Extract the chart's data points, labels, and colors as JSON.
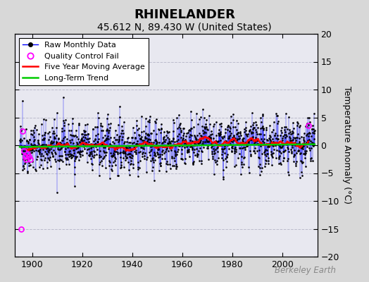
{
  "title": "RHINELANDER",
  "subtitle": "45.612 N, 89.430 W (United States)",
  "ylabel": "Temperature Anomaly (°C)",
  "watermark": "Berkeley Earth",
  "xlim": [
    1893,
    2014
  ],
  "ylim": [
    -20,
    20
  ],
  "yticks": [
    -20,
    -15,
    -10,
    -5,
    0,
    5,
    10,
    15,
    20
  ],
  "xticks": [
    1900,
    1920,
    1940,
    1960,
    1980,
    2000
  ],
  "start_year": 1895,
  "end_year": 2012,
  "seed": 42,
  "noise_std": 2.5,
  "raw_color": "#0000ff",
  "moving_avg_color": "#ff0000",
  "trend_color": "#00cc00",
  "qc_color": "#ff00ff",
  "background_color": "#d8d8d8",
  "plot_bg_color": "#e8e8f0",
  "grid_color": "#bbbbcc",
  "title_fontsize": 13,
  "subtitle_fontsize": 10,
  "axis_fontsize": 9,
  "ylabel_fontsize": 9,
  "qc_points_x": [
    1895.5,
    1896.2,
    1896.7,
    1897.1,
    1897.6,
    1898.1,
    1898.6,
    1899.1,
    2010.5
  ],
  "qc_points_y": [
    -15.0,
    2.5,
    -1.0,
    -2.0,
    -2.5,
    -1.5,
    -2.0,
    -2.5,
    3.5
  ]
}
